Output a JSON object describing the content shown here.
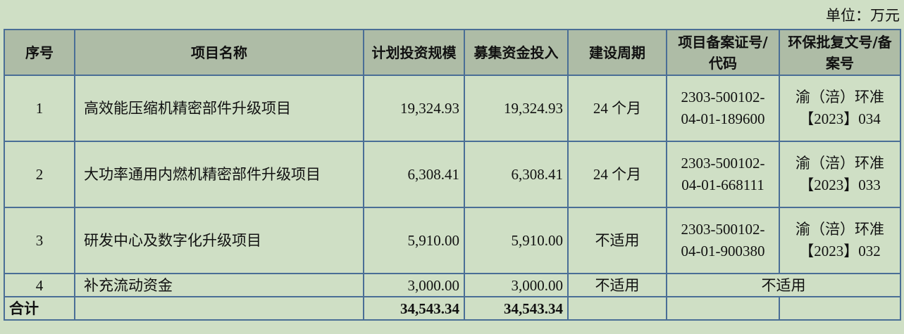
{
  "unit_label": "单位：万元",
  "headers": [
    "序号",
    "项目名称",
    "计划投资规模",
    "募集资金投入",
    "建设周期",
    "项目备案证号/代码",
    "环保批复文号/备案号"
  ],
  "rows": [
    {
      "no": "1",
      "name": "高效能压缩机精密部件升级项目",
      "plan": "19,324.93",
      "raised": "19,324.93",
      "period": "24 个月",
      "filing": "2303-500102-04-01-189600",
      "env": "渝（涪）环准【2023】034"
    },
    {
      "no": "2",
      "name": "大功率通用内燃机精密部件升级项目",
      "plan": "6,308.41",
      "raised": "6,308.41",
      "period": "24 个月",
      "filing": "2303-500102-04-01-668111",
      "env": "渝（涪）环准【2023】033"
    },
    {
      "no": "3",
      "name": "研发中心及数字化升级项目",
      "plan": "5,910.00",
      "raised": "5,910.00",
      "period": "不适用",
      "filing": "2303-500102-04-01-900380",
      "env": "渝（涪）环准【2023】032"
    },
    {
      "no": "4",
      "name": "补充流动资金",
      "plan": "3,000.00",
      "raised": "3,000.00",
      "period": "不适用",
      "filing_env": "不适用"
    }
  ],
  "total": {
    "label": "合计",
    "plan": "34,543.34",
    "raised": "34,543.34"
  }
}
